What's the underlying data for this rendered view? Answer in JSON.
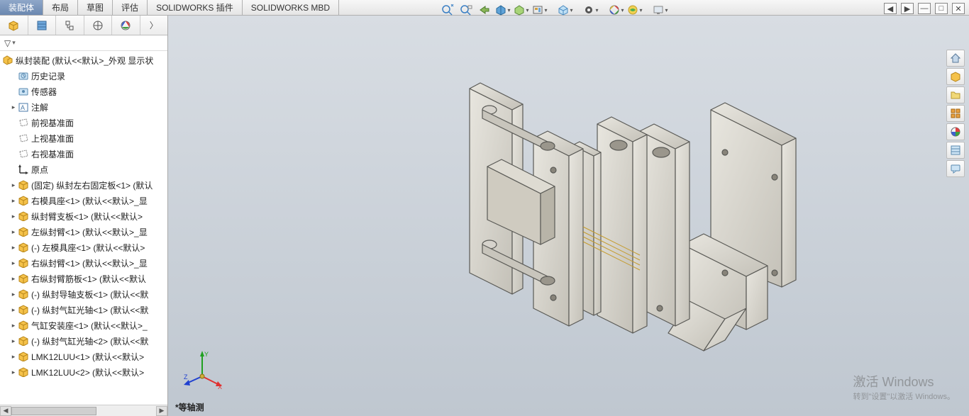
{
  "tabs": {
    "items": [
      "装配体",
      "布局",
      "草图",
      "评估",
      "SOLIDWORKS 插件",
      "SOLIDWORKS MBD"
    ],
    "active_index": 0
  },
  "filter_label": "▽",
  "tree": {
    "root": "纵封装配  (默认<<默认>_外观 显示状",
    "nodes": [
      {
        "icon": "history",
        "label": "历史记录",
        "expander": ""
      },
      {
        "icon": "sensor",
        "label": "传感器",
        "expander": ""
      },
      {
        "icon": "annot",
        "label": "注解",
        "expander": "▸"
      },
      {
        "icon": "plane",
        "label": "前视基准面",
        "expander": ""
      },
      {
        "icon": "plane",
        "label": "上视基准面",
        "expander": ""
      },
      {
        "icon": "plane",
        "label": "右视基准面",
        "expander": ""
      },
      {
        "icon": "origin",
        "label": "原点",
        "expander": ""
      },
      {
        "icon": "part",
        "label": "(固定) 纵封左右固定板<1> (默认",
        "expander": "▸"
      },
      {
        "icon": "part",
        "label": "右模具座<1> (默认<<默认>_显",
        "expander": "▸"
      },
      {
        "icon": "part",
        "label": "纵封臂支板<1> (默认<<默认>",
        "expander": "▸"
      },
      {
        "icon": "part",
        "label": "左纵封臂<1> (默认<<默认>_显",
        "expander": "▸"
      },
      {
        "icon": "part",
        "label": "(-) 左模具座<1> (默认<<默认>",
        "expander": "▸"
      },
      {
        "icon": "part",
        "label": "右纵封臂<1> (默认<<默认>_显",
        "expander": "▸"
      },
      {
        "icon": "part",
        "label": "右纵封臂筋板<1> (默认<<默认",
        "expander": "▸"
      },
      {
        "icon": "part",
        "label": "(-) 纵封导轴支板<1> (默认<<默",
        "expander": "▸"
      },
      {
        "icon": "part",
        "label": "(-) 纵封气缸光轴<1> (默认<<默",
        "expander": "▸"
      },
      {
        "icon": "part",
        "label": "气缸安装座<1> (默认<<默认>_",
        "expander": "▸"
      },
      {
        "icon": "part",
        "label": "(-) 纵封气缸光轴<2> (默认<<默",
        "expander": "▸"
      },
      {
        "icon": "part",
        "label": "LMK12LUU<1> (默认<<默认>",
        "expander": "▸"
      },
      {
        "icon": "part",
        "label": "LMK12LUU<2> (默认<<默认>",
        "expander": "▸"
      }
    ]
  },
  "viewport": {
    "status": "*等轴测",
    "triad": {
      "x_label": "X",
      "y_label": "Y",
      "z_label": "Z",
      "x_color": "#e03030",
      "y_color": "#20a020",
      "z_color": "#2040d0"
    },
    "background_top": "#d8dde3",
    "background_bottom": "#bfc7d0",
    "model_face_color": "#d6d3cc",
    "model_edge_color": "#5a5a56"
  },
  "watermark": {
    "line1": "激活 Windows",
    "line2": "转到\"设置\"以激活 Windows。"
  },
  "view_toolbar_icons": [
    "zoom-fit",
    "zoom-area",
    "zoom-prev",
    "section",
    "display-style",
    "hide-show",
    "view-orient",
    "",
    "appearance",
    "scene",
    "render",
    "",
    "screen"
  ],
  "right_toolbar": [
    "home",
    "part",
    "open",
    "save",
    "appearance",
    "display-pane",
    "custom"
  ],
  "win_controls": [
    "◀",
    "▶",
    "—",
    "□",
    "✕"
  ]
}
